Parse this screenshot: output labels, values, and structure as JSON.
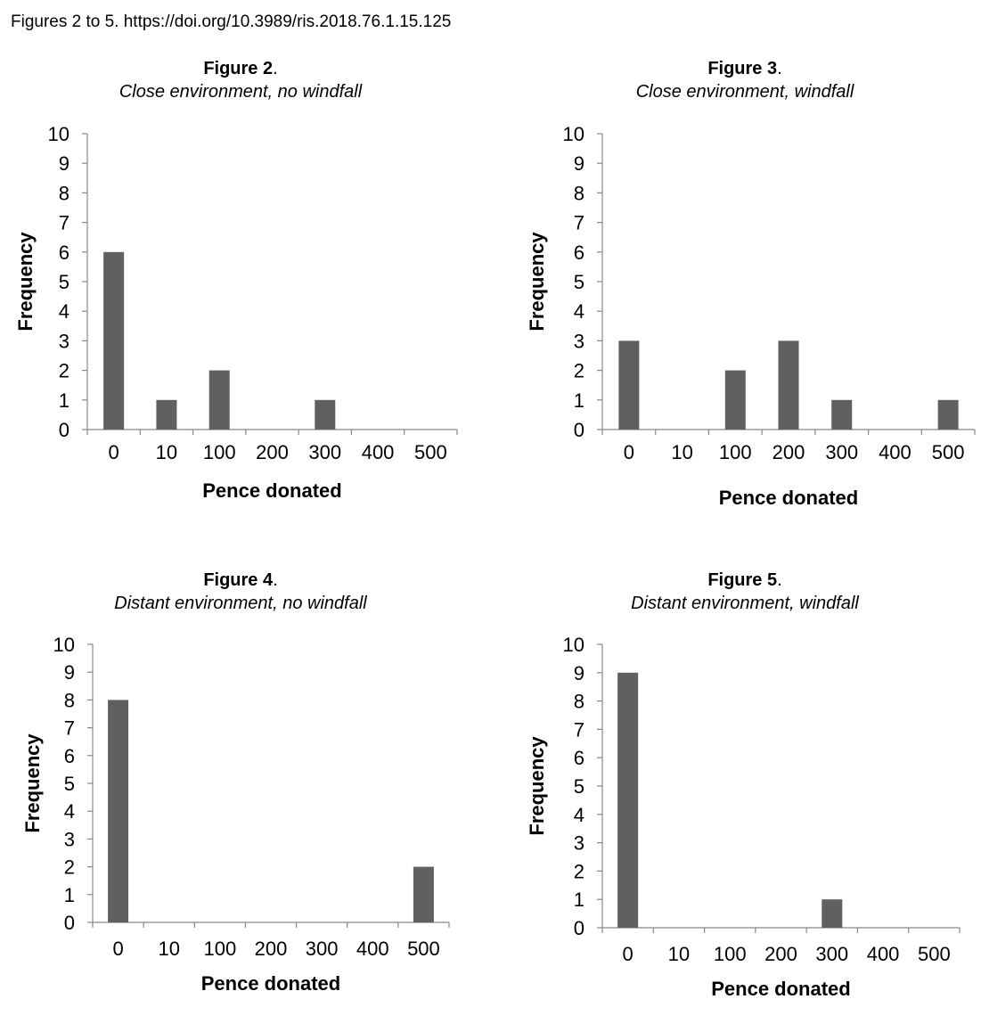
{
  "header": {
    "text": "Figures 2 to 5. https://doi.org/10.3989/ris.2018.76.1.15.125"
  },
  "colors": {
    "bar": "#606060",
    "axis": "#888888"
  },
  "chart_data": [
    {
      "type": "bar",
      "figure_label": "Figure 2",
      "title_suffix": ".",
      "subtitle": "Close environment, no windfall",
      "categories": [
        "0",
        "10",
        "100",
        "200",
        "300",
        "400",
        "500"
      ],
      "values": [
        6,
        1,
        2,
        0,
        1,
        0,
        0
      ],
      "xlabel": "Pence donated",
      "ylabel": "Frequency",
      "ylim": [
        0,
        10
      ],
      "yticks": [
        0,
        1,
        2,
        3,
        4,
        5,
        6,
        7,
        8,
        9,
        10
      ]
    },
    {
      "type": "bar",
      "figure_label": "Figure 3",
      "title_suffix": ".",
      "subtitle": "Close environment, windfall",
      "categories": [
        "0",
        "10",
        "100",
        "200",
        "300",
        "400",
        "500"
      ],
      "values": [
        3,
        0,
        2,
        3,
        1,
        0,
        1
      ],
      "xlabel": "Pence donated",
      "ylabel": "Frequency",
      "ylim": [
        0,
        10
      ],
      "yticks": [
        0,
        1,
        2,
        3,
        4,
        5,
        6,
        7,
        8,
        9,
        10
      ]
    },
    {
      "type": "bar",
      "figure_label": "Figure 4",
      "title_suffix": ".",
      "subtitle": "Distant environment, no windfall",
      "categories": [
        "0",
        "10",
        "100",
        "200",
        "300",
        "400",
        "500"
      ],
      "values": [
        8,
        0,
        0,
        0,
        0,
        0,
        2
      ],
      "xlabel": "Pence donated",
      "ylabel": "Frequency",
      "ylim": [
        0,
        10
      ],
      "yticks": [
        0,
        1,
        2,
        3,
        4,
        5,
        6,
        7,
        8,
        9,
        10
      ]
    },
    {
      "type": "bar",
      "figure_label": "Figure 5",
      "title_suffix": ".",
      "subtitle": "Distant environment, windfall",
      "categories": [
        "0",
        "10",
        "100",
        "200",
        "300",
        "400",
        "500"
      ],
      "values": [
        9,
        0,
        0,
        0,
        1,
        0,
        0
      ],
      "xlabel": "Pence donated",
      "ylabel": "Frequency",
      "ylim": [
        0,
        10
      ],
      "yticks": [
        0,
        1,
        2,
        3,
        4,
        5,
        6,
        7,
        8,
        9,
        10
      ]
    }
  ]
}
